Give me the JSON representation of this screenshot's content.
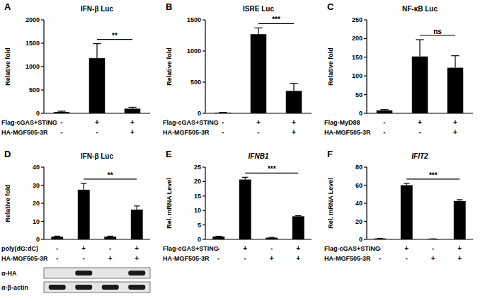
{
  "chart_data": [
    {
      "type": "bar",
      "panel_label": "A",
      "title": "IFN-β Luc",
      "y_label": "Relative fold",
      "categories": [
        null,
        null,
        null
      ],
      "values": [
        30,
        1180,
        100
      ],
      "errors": [
        15,
        310,
        30
      ],
      "color": "#000000",
      "ylim": [
        0,
        2000
      ],
      "yticks": [
        0,
        500,
        1000,
        1500,
        2000
      ],
      "grid": false,
      "conditions": [
        {
          "label": "Flag-cGAS+STING",
          "marks": [
            "-",
            "+",
            "+"
          ]
        },
        {
          "label": "HA-MGF505-3R",
          "marks": [
            "-",
            "-",
            "+"
          ]
        }
      ],
      "significance": {
        "from": 1,
        "to": 2,
        "label": "**"
      }
    },
    {
      "type": "bar",
      "panel_label": "B",
      "title": "ISRE Luc",
      "y_label": "Relative fold",
      "categories": [
        null,
        null,
        null
      ],
      "values": [
        10,
        1270,
        360
      ],
      "errors": [
        5,
        100,
        120
      ],
      "color": "#000000",
      "ylim": [
        0,
        1500
      ],
      "yticks": [
        0,
        500,
        1000,
        1500
      ],
      "grid": false,
      "conditions": [
        {
          "label": "Flag-cGAS+STING",
          "marks": [
            "-",
            "+",
            "+"
          ]
        },
        {
          "label": "HA-MGF505-3R",
          "marks": [
            "-",
            "-",
            "+"
          ]
        }
      ],
      "significance": {
        "from": 1,
        "to": 2,
        "label": "***"
      }
    },
    {
      "type": "bar",
      "panel_label": "C",
      "title": "NF-κB Luc",
      "y_label": "Relative fold",
      "categories": [
        null,
        null,
        null
      ],
      "values": [
        8,
        152,
        122
      ],
      "errors": [
        2,
        45,
        32
      ],
      "color": "#000000",
      "ylim": [
        0,
        250
      ],
      "yticks": [
        0,
        50,
        100,
        150,
        200,
        250
      ],
      "grid": false,
      "conditions": [
        {
          "label": "Flag-MyD88",
          "marks": [
            "-",
            "+",
            "+"
          ]
        },
        {
          "label": "HA-MGF505-3R",
          "marks": [
            "-",
            "-",
            "+"
          ]
        }
      ],
      "significance": {
        "from": 1,
        "to": 2,
        "label": "ns"
      }
    },
    {
      "type": "bar",
      "panel_label": "D",
      "title": "IFN-β Luc",
      "y_label": "Relative fold",
      "categories": [
        null,
        null,
        null,
        null
      ],
      "values": [
        1.5,
        27.5,
        1.5,
        16.5
      ],
      "errors": [
        0.3,
        3.5,
        0.3,
        2
      ],
      "color": "#000000",
      "ylim": [
        0,
        40
      ],
      "yticks": [
        0,
        10,
        20,
        30,
        40
      ],
      "grid": false,
      "conditions": [
        {
          "label": "poly(dG:dC)",
          "marks": [
            "-",
            "+",
            "-",
            "+"
          ]
        },
        {
          "label": "HA-MGF505-3R",
          "marks": [
            "-",
            "-",
            "+",
            "+"
          ]
        }
      ],
      "significance": {
        "from": 1,
        "to": 3,
        "label": "**"
      },
      "blot": {
        "rows": [
          {
            "label": "α-HA",
            "bands": [
              false,
              true,
              false,
              true
            ]
          },
          {
            "label": "α-β-actin",
            "bands": [
              true,
              true,
              true,
              true
            ]
          }
        ]
      }
    },
    {
      "type": "bar",
      "panel_label": "E",
      "title": "IFNB1",
      "y_label": "Rel. mRNA Level",
      "categories": [
        null,
        null,
        null,
        null
      ],
      "values": [
        1,
        20.7,
        0.6,
        8
      ],
      "errors": [
        0.1,
        0.8,
        0.1,
        0.2
      ],
      "color": "#000000",
      "ylim": [
        0,
        25
      ],
      "yticks": [
        0,
        5,
        10,
        15,
        20,
        25
      ],
      "grid": false,
      "conditions": [
        {
          "label": "Flag-cGAS+STING",
          "marks": [
            "-",
            "+",
            "-",
            "+"
          ]
        },
        {
          "label": "HA-MGF505-3R",
          "marks": [
            "-",
            "-",
            "+",
            "+"
          ]
        }
      ],
      "significance": {
        "from": 1,
        "to": 3,
        "label": "***"
      }
    },
    {
      "type": "bar",
      "panel_label": "F",
      "title": "IFIT2",
      "y_label": "Rel. mRNA Level",
      "categories": [
        null,
        null,
        null,
        null
      ],
      "values": [
        1,
        60,
        0.5,
        42.5
      ],
      "errors": [
        0.2,
        2,
        0.1,
        1.5
      ],
      "color": "#000000",
      "ylim": [
        0,
        80
      ],
      "yticks": [
        0,
        20,
        40,
        60,
        80
      ],
      "grid": false,
      "conditions": [
        {
          "label": "Flag-cGAS+STING",
          "marks": [
            "-",
            "+",
            "-",
            "+"
          ]
        },
        {
          "label": "HA-MGF505-3R",
          "marks": [
            "-",
            "-",
            "+",
            "+"
          ]
        }
      ],
      "significance": {
        "from": 1,
        "to": 3,
        "label": "***"
      }
    }
  ]
}
